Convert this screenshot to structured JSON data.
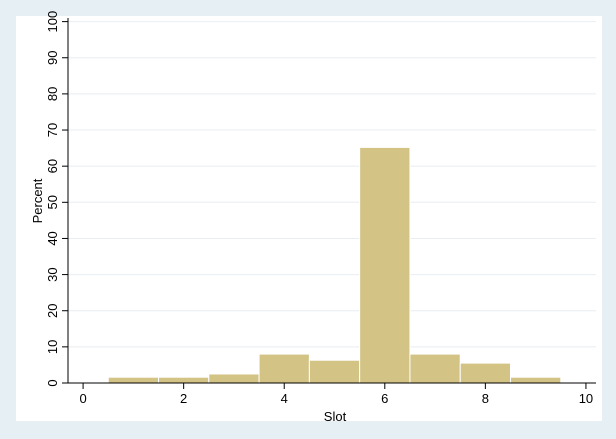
{
  "chart_data": {
    "type": "bar",
    "title": "",
    "xlabel": "Slot",
    "ylabel": "Percent",
    "xlim": [
      -0.3,
      10.2
    ],
    "ylim": [
      0,
      101
    ],
    "x_ticks": [
      0,
      2,
      4,
      6,
      8,
      10
    ],
    "y_ticks": [
      0,
      10,
      20,
      30,
      40,
      50,
      60,
      70,
      80,
      90,
      100
    ],
    "grid": true,
    "bins": [
      {
        "x_start": 0.5,
        "x_end": 1.5,
        "value": 1.6
      },
      {
        "x_start": 1.5,
        "x_end": 2.5,
        "value": 1.6
      },
      {
        "x_start": 2.5,
        "x_end": 3.5,
        "value": 2.5
      },
      {
        "x_start": 3.5,
        "x_end": 4.5,
        "value": 8.0
      },
      {
        "x_start": 4.5,
        "x_end": 5.5,
        "value": 6.3
      },
      {
        "x_start": 5.5,
        "x_end": 6.5,
        "value": 65.2
      },
      {
        "x_start": 6.5,
        "x_end": 7.5,
        "value": 8.0
      },
      {
        "x_start": 7.5,
        "x_end": 8.5,
        "value": 5.5
      },
      {
        "x_start": 8.5,
        "x_end": 9.5,
        "value": 1.6
      }
    ],
    "colors": {
      "outer_background": "#e6eff4",
      "plot_background": "#ffffff",
      "bar_fill": "#d3c385",
      "bar_edge": "#ffffff",
      "grid": "#e8eef2",
      "axis": "#000000"
    }
  }
}
